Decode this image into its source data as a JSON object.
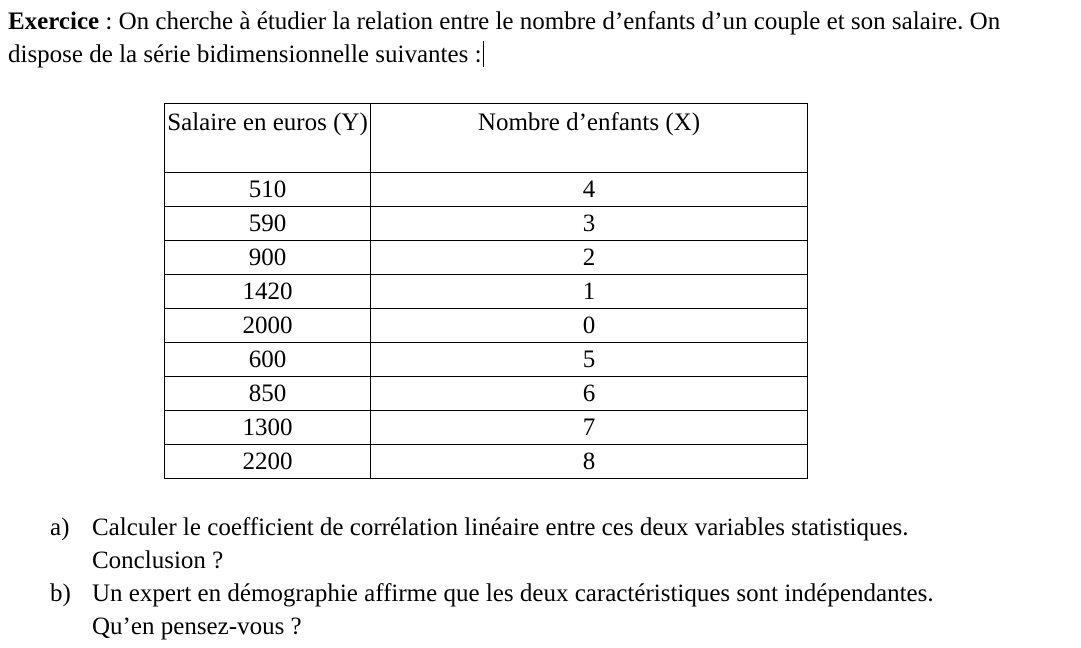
{
  "exercise": {
    "label": "Exercice",
    "separator": " : ",
    "text": "On cherche à étudier la relation entre le nombre d’enfants d’un couple et son salaire. On dispose de la série bidimensionnelle suivantes :"
  },
  "table": {
    "headers": [
      "Salaire en euros (Y)",
      "Nombre d’enfants (X)"
    ],
    "rows": [
      [
        "510",
        "4"
      ],
      [
        "590",
        "3"
      ],
      [
        "900",
        "2"
      ],
      [
        "1420",
        "1"
      ],
      [
        "2000",
        "0"
      ],
      [
        "600",
        "5"
      ],
      [
        "850",
        "6"
      ],
      [
        "1300",
        "7"
      ],
      [
        "2200",
        "8"
      ]
    ]
  },
  "questions": [
    {
      "letter": "a)",
      "line1": "Calculer le coefficient de corrélation linéaire entre ces deux variables statistiques.",
      "line2": "Conclusion ?"
    },
    {
      "letter": "b)",
      "line1": "Un expert en démographie affirme que les deux caractéristiques sont indépendantes.",
      "line2": "Qu’en pensez-vous ?"
    }
  ]
}
